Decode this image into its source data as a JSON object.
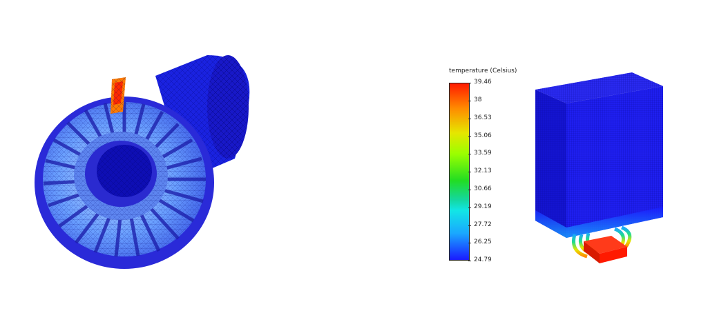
{
  "legend": {
    "title": "temperature (Celsius)",
    "ticks": [
      "39.46",
      "38",
      "36.53",
      "35.06",
      "33.59",
      "32.13",
      "30.66",
      "29.19",
      "27.72",
      "26.25",
      "24.79"
    ]
  },
  "colors": {
    "hot": "#ff1a00",
    "cold": "#1a1aff",
    "background": "#ffffff"
  }
}
